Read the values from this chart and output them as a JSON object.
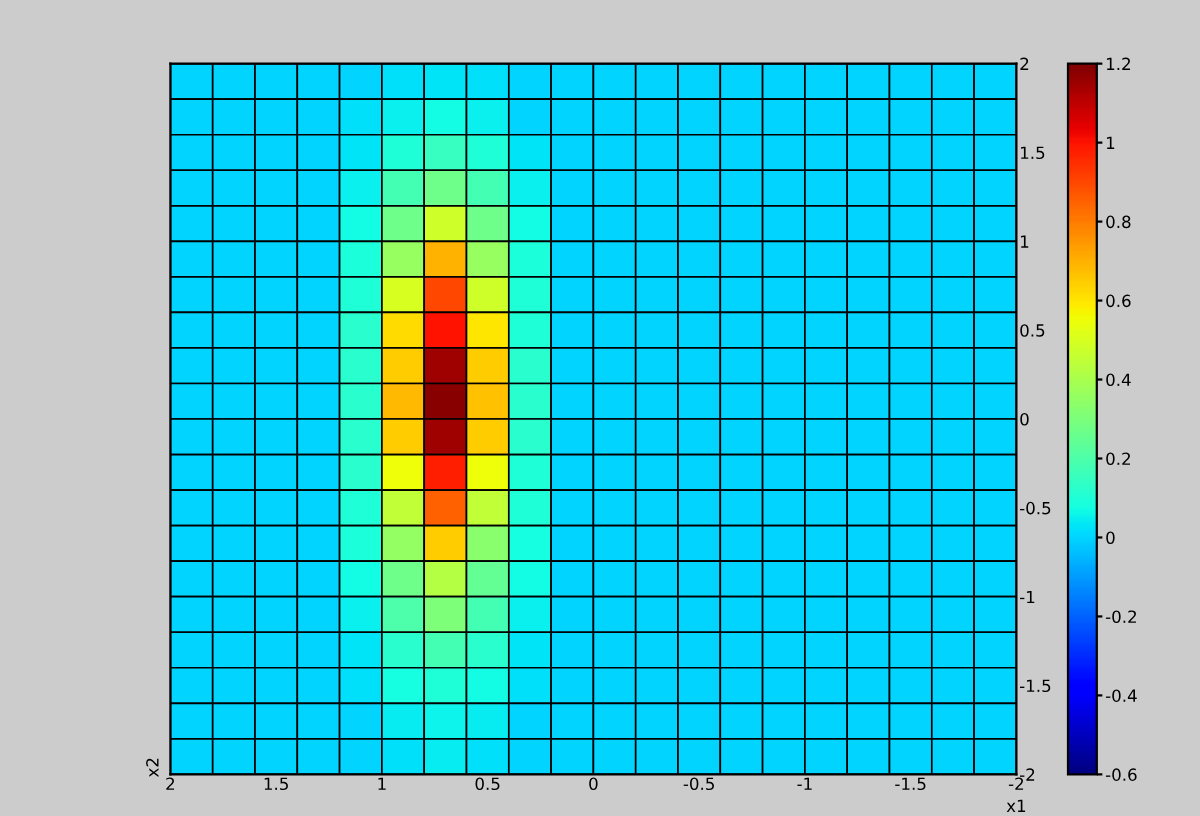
{
  "chart_data": {
    "type": "heatmap",
    "xlabel": "x1",
    "ylabel": "x2",
    "xlim": [
      2,
      -2
    ],
    "ylim": [
      -2,
      2
    ],
    "xticks": [
      2,
      1.5,
      1,
      0.5,
      0,
      {
        "value": -0.5,
        "label": "-0.5"
      },
      {
        "value": -1,
        "label": "-1"
      },
      {
        "value": -1.5,
        "label": "-1.5"
      },
      {
        "value": -2,
        "label": "-2"
      }
    ],
    "yticks": [
      {
        "value": -2,
        "label": "-2"
      },
      {
        "value": -1.5,
        "label": "-1.5"
      },
      {
        "value": -1,
        "label": "-1"
      },
      {
        "value": -0.5,
        "label": "-0.5"
      },
      0,
      0.5,
      1,
      1.5,
      2
    ],
    "clim": [
      -0.6,
      1.2
    ],
    "cticks": [
      {
        "value": -0.6,
        "label": "-0.6"
      },
      {
        "value": -0.4,
        "label": "-0.4"
      },
      {
        "value": -0.2,
        "label": "-0.2"
      },
      0,
      0.2,
      0.4,
      0.6,
      0.8,
      1,
      1.2
    ],
    "cells": [
      [
        0,
        0,
        0,
        0,
        0,
        0.02,
        0.03,
        0.02,
        0,
        0,
        0,
        0,
        0,
        0,
        0,
        0,
        0,
        0,
        0,
        0
      ],
      [
        0,
        0,
        0,
        0,
        0.02,
        0.05,
        0.07,
        0.05,
        0,
        0,
        0,
        0,
        0,
        0,
        0,
        0,
        0,
        0,
        0,
        0
      ],
      [
        0,
        0,
        0,
        0,
        0.03,
        0.1,
        0.15,
        0.1,
        0.03,
        0,
        0,
        0,
        0,
        0,
        0,
        0,
        0,
        0,
        0,
        0
      ],
      [
        0,
        0,
        0,
        0,
        0.05,
        0.18,
        0.27,
        0.18,
        0.05,
        0,
        0,
        0,
        0,
        0,
        0,
        0,
        0,
        0,
        0,
        0
      ],
      [
        0,
        0,
        0,
        0,
        0.07,
        0.27,
        0.48,
        0.27,
        0.07,
        0,
        0,
        0,
        0,
        0,
        0,
        0,
        0,
        0,
        0,
        0
      ],
      [
        0,
        0,
        0,
        0,
        0.09,
        0.36,
        0.7,
        0.36,
        0.09,
        0,
        0,
        0,
        0,
        0,
        0,
        0,
        0,
        0,
        0,
        0
      ],
      [
        0,
        0,
        0,
        0,
        0.1,
        0.5,
        0.9,
        0.48,
        0.1,
        0,
        0,
        0,
        0,
        0,
        0,
        0,
        0,
        0,
        0,
        0
      ],
      [
        0,
        0,
        0,
        0,
        0.12,
        0.62,
        1,
        0.6,
        0.1,
        0,
        0,
        0,
        0,
        0,
        0,
        0,
        0,
        0,
        0,
        0
      ],
      [
        0,
        0,
        0,
        0,
        0.12,
        0.65,
        1.15,
        0.65,
        0.12,
        0,
        0,
        0,
        0,
        0,
        0,
        0,
        0,
        0,
        0,
        0
      ],
      [
        0,
        0,
        0,
        0,
        0.12,
        0.68,
        1.18,
        0.67,
        0.12,
        0,
        0,
        0,
        0,
        0,
        0,
        0,
        0,
        0,
        0,
        0
      ],
      [
        0,
        0,
        0,
        0,
        0.12,
        0.65,
        1.15,
        0.65,
        0.12,
        0,
        0,
        0,
        0,
        0,
        0,
        0,
        0,
        0,
        0,
        0
      ],
      [
        0,
        0,
        0,
        0,
        0.12,
        0.55,
        0.98,
        0.55,
        0.1,
        0,
        0,
        0,
        0,
        0,
        0,
        0,
        0,
        0,
        0,
        0
      ],
      [
        0,
        0,
        0,
        0,
        0.1,
        0.45,
        0.85,
        0.45,
        0.1,
        0,
        0,
        0,
        0,
        0,
        0,
        0,
        0,
        0,
        0,
        0
      ],
      [
        0,
        0,
        0,
        0,
        0.09,
        0.35,
        0.65,
        0.33,
        0.08,
        0,
        0,
        0,
        0,
        0,
        0,
        0,
        0,
        0,
        0,
        0
      ],
      [
        0,
        0,
        0,
        0,
        0.07,
        0.27,
        0.42,
        0.25,
        0.07,
        0,
        0,
        0,
        0,
        0,
        0,
        0,
        0,
        0,
        0,
        0
      ],
      [
        0,
        0,
        0,
        0,
        0.05,
        0.2,
        0.3,
        0.18,
        0.05,
        0,
        0,
        0,
        0,
        0,
        0,
        0,
        0,
        0,
        0,
        0
      ],
      [
        0,
        0,
        0,
        0,
        0.03,
        0.12,
        0.18,
        0.12,
        0.03,
        0,
        0,
        0,
        0,
        0,
        0,
        0,
        0,
        0,
        0,
        0
      ],
      [
        0,
        0,
        0,
        0,
        0.02,
        0.08,
        0.1,
        0.07,
        0.02,
        0,
        0,
        0,
        0,
        0,
        0,
        0,
        0,
        0,
        0,
        0
      ],
      [
        0,
        0,
        0,
        0,
        0,
        0.04,
        0.06,
        0.04,
        0,
        0,
        0,
        0,
        0,
        0,
        0,
        0,
        0,
        0,
        0,
        0
      ],
      [
        0,
        0,
        0,
        0,
        0,
        0.02,
        0.04,
        0.02,
        0,
        0,
        0,
        0,
        0,
        0,
        0,
        0,
        0,
        0,
        0,
        0
      ]
    ]
  }
}
